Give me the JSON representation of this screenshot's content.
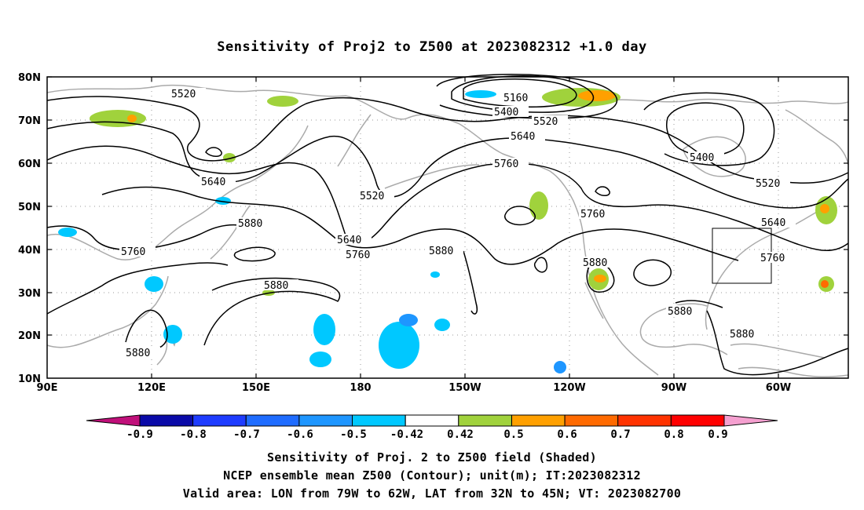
{
  "title": "Sensitivity of Proj2 to Z500 at 2023082312 +1.0 day",
  "lat_ticks": [
    "80N",
    "70N",
    "60N",
    "50N",
    "40N",
    "30N",
    "20N",
    "10N"
  ],
  "lon_ticks": [
    "90E",
    "120E",
    "150E",
    "180",
    "150W",
    "120W",
    "90W",
    "60W"
  ],
  "contour_labels": {
    "c5520a": "5520",
    "c5160": "5160",
    "c5400a": "5400",
    "c5520b": "5520",
    "c5640a": "5640",
    "c5760a": "5760",
    "c5400b": "5400",
    "c5520c": "5520",
    "c5520d": "5520",
    "c5640b": "5640",
    "c5760b": "5760",
    "c5640c": "5640",
    "c5880a": "5880",
    "c5760c": "5760",
    "c5640d": "5640",
    "c5760d": "5760",
    "c5880b": "5880",
    "c5880c": "5880",
    "c5880d": "5880",
    "c5880e": "5880",
    "c5880f": "5880",
    "c5760e": "5760",
    "c5880g": "5880"
  },
  "colorbar": {
    "labels": [
      "-0.9",
      "-0.8",
      "-0.7",
      "-0.6",
      "-0.5",
      "-0.42",
      "0.42",
      "0.5",
      "0.6",
      "0.7",
      "0.8",
      "0.9"
    ],
    "colors": [
      "#0a0aa8",
      "#1e3cff",
      "#1f6cff",
      "#1e96ff",
      "#00c8ff",
      "#ffffff",
      "#a0d23c",
      "#ffa000",
      "#ff6a00",
      "#ff3300",
      "#ff0000"
    ],
    "low_extend_color": "#c0107a",
    "high_extend_color": "#f5a0d0"
  },
  "colors": {
    "coast": "#aaaaaa",
    "contour": "#000000",
    "grid": "#999999"
  },
  "caption": {
    "line1": "Sensitivity of Proj. 2 to Z500 field (Shaded)",
    "line2": "NCEP ensemble mean Z500 (Contour); unit(m); IT:2023082312",
    "line3": "Valid area: LON from 79W to 62W, LAT from 32N to 45N; VT: 2023082700"
  }
}
